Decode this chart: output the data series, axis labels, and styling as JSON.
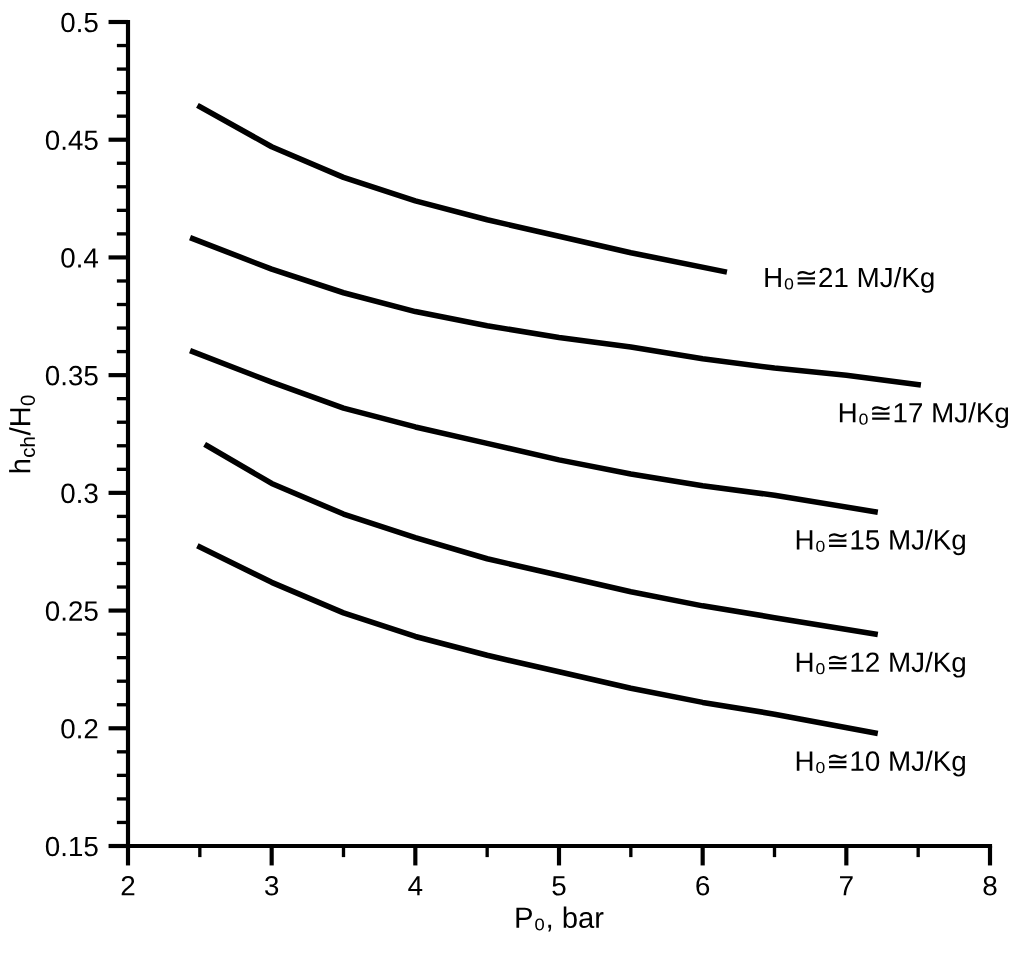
{
  "chart_data": {
    "type": "line",
    "xlabel": "P₀, bar",
    "ylabel": "h$_{ch}$/H$_{0}$",
    "xlim": [
      2,
      8
    ],
    "ylim": [
      0.15,
      0.5
    ],
    "xticks": [
      2,
      3,
      4,
      5,
      6,
      7,
      8
    ],
    "yticks": [
      0.15,
      0.2,
      0.25,
      0.3,
      0.35,
      0.4,
      0.45,
      0.5
    ],
    "grid": false,
    "legend": false,
    "marker": "none",
    "line_style": "solid",
    "series": [
      {
        "name": "H₀≅21 MJ/Kg",
        "color": "#000000",
        "x": [
          2.5,
          3,
          3.5,
          4,
          4.5,
          5,
          5.5,
          6.15
        ],
        "values": [
          0.464,
          0.447,
          0.434,
          0.424,
          0.416,
          0.409,
          0.402,
          0.394
        ]
      },
      {
        "name": "H₀≅17 MJ/Kg",
        "color": "#000000",
        "x": [
          2.45,
          3,
          3.5,
          4,
          4.5,
          5,
          5.5,
          6,
          6.5,
          7,
          7.5
        ],
        "values": [
          0.408,
          0.395,
          0.385,
          0.377,
          0.371,
          0.366,
          0.362,
          0.357,
          0.353,
          0.35,
          0.346
        ]
      },
      {
        "name": "H₀≅15 MJ/Kg",
        "color": "#000000",
        "x": [
          2.45,
          3,
          3.5,
          4,
          4.5,
          5,
          5.5,
          6,
          6.5,
          7.2
        ],
        "values": [
          0.36,
          0.347,
          0.336,
          0.328,
          0.321,
          0.314,
          0.308,
          0.303,
          0.299,
          0.292
        ]
      },
      {
        "name": "H₀≅12 MJ/Kg",
        "color": "#000000",
        "x": [
          2.55,
          3,
          3.5,
          4,
          4.5,
          5,
          5.5,
          6,
          6.5,
          7.2
        ],
        "values": [
          0.32,
          0.304,
          0.291,
          0.281,
          0.272,
          0.265,
          0.258,
          0.252,
          0.247,
          0.24
        ]
      },
      {
        "name": "H₀≅10 MJ/Kg",
        "color": "#000000",
        "x": [
          2.5,
          3,
          3.5,
          4,
          4.5,
          5,
          5.5,
          6,
          6.5,
          7.2
        ],
        "values": [
          0.277,
          0.262,
          0.249,
          0.239,
          0.231,
          0.224,
          0.217,
          0.211,
          0.206,
          0.198
        ]
      }
    ]
  }
}
